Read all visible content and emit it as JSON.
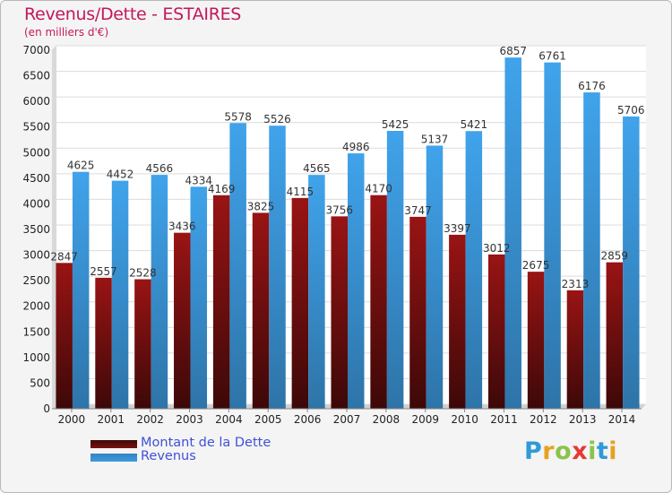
{
  "title": "Revenus/Dette - ESTAIRES",
  "subtitle": "(en milliers d'€)",
  "chart_data": {
    "type": "bar",
    "categories": [
      "2000",
      "2001",
      "2002",
      "2003",
      "2004",
      "2005",
      "2006",
      "2007",
      "2008",
      "2009",
      "2010",
      "2011",
      "2012",
      "2013",
      "2014"
    ],
    "series": [
      {
        "name": "Montant de la Dette",
        "color": "#7a1010",
        "values": [
          2847,
          2557,
          2528,
          3436,
          4169,
          3825,
          4115,
          3756,
          4170,
          3747,
          3397,
          3012,
          2675,
          2313,
          2859
        ],
        "labels": [
          "2847",
          "2557",
          "2528",
          "3436",
          "4169",
          "3825",
          "4115",
          "3756",
          "4170",
          "3747",
          "3397",
          "3012",
          "2675",
          "2313",
          "2859"
        ]
      },
      {
        "name": "Revenus",
        "color": "#3d9be0",
        "values": [
          4625,
          4452,
          4566,
          4334,
          5578,
          5526,
          4565,
          4986,
          5425,
          5137,
          5421,
          6857,
          6761,
          6176,
          5706
        ],
        "labels": [
          "4625",
          "4452",
          "4566",
          "4334",
          "5578",
          "5526",
          "4565",
          "4986",
          "5425",
          "5137",
          "5421",
          "6857",
          "6761",
          "6176",
          "5706"
        ]
      }
    ],
    "ylim": [
      0,
      7000
    ],
    "yticks": [
      0,
      500,
      1000,
      1500,
      2000,
      2500,
      3000,
      3500,
      4000,
      4500,
      5000,
      5500,
      6000,
      6500,
      7000
    ],
    "grid": true,
    "legend_position": "bottom-left"
  },
  "legend": [
    {
      "label": "Montant de la Dette",
      "color": "#7a1010"
    },
    {
      "label": "Revenus",
      "color": "#3d9be0"
    }
  ],
  "logo": {
    "letters": [
      "P",
      "r",
      "o",
      "x",
      "i",
      "t",
      "i"
    ],
    "colors": [
      "#2e9bd6",
      "#e6a21f",
      "#8bc34a",
      "#e53935",
      "#8bc34a",
      "#2e9bd6",
      "#e6a21f"
    ]
  }
}
